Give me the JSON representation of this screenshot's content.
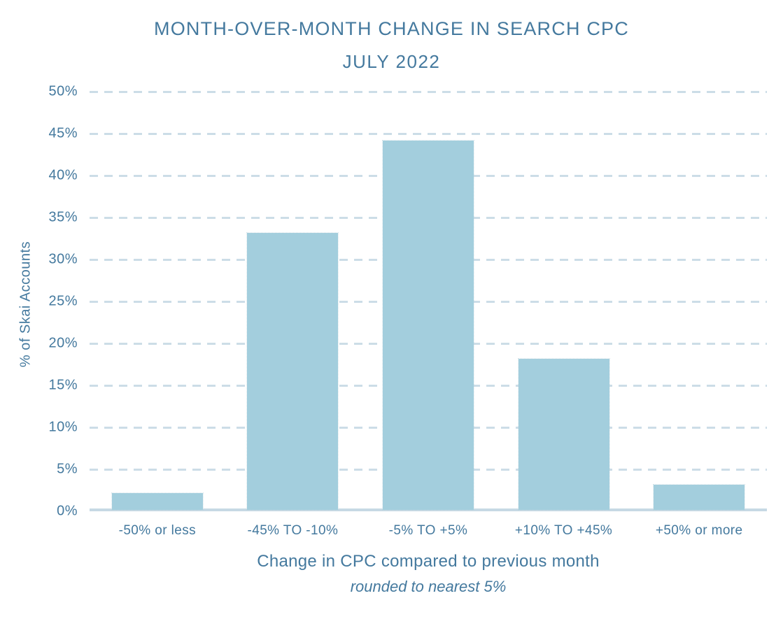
{
  "chart_data": {
    "type": "bar",
    "title": "MONTH-OVER-MONTH CHANGE IN SEARCH CPC",
    "subtitle": "JULY 2022",
    "categories": [
      "-50% or less",
      "-45% TO -10%",
      "-5% TO +5%",
      "+10% TO +45%",
      "+50% or more"
    ],
    "values": [
      2,
      33,
      44,
      18,
      3
    ],
    "xlabel": "Change in CPC compared to previous month",
    "xlabel_note": "rounded to nearest 5%",
    "ylabel": "% of Skai Accounts",
    "ylim": [
      0,
      50
    ],
    "ytick_step": 5,
    "ytick_suffix": "%",
    "grid": "horizontal dashed, on",
    "legend": "none",
    "colors": {
      "bar_fill": "#a3cedd",
      "text": "#44799e",
      "gridline": "#ccdde7",
      "baseline": "#c6d9e4"
    }
  }
}
